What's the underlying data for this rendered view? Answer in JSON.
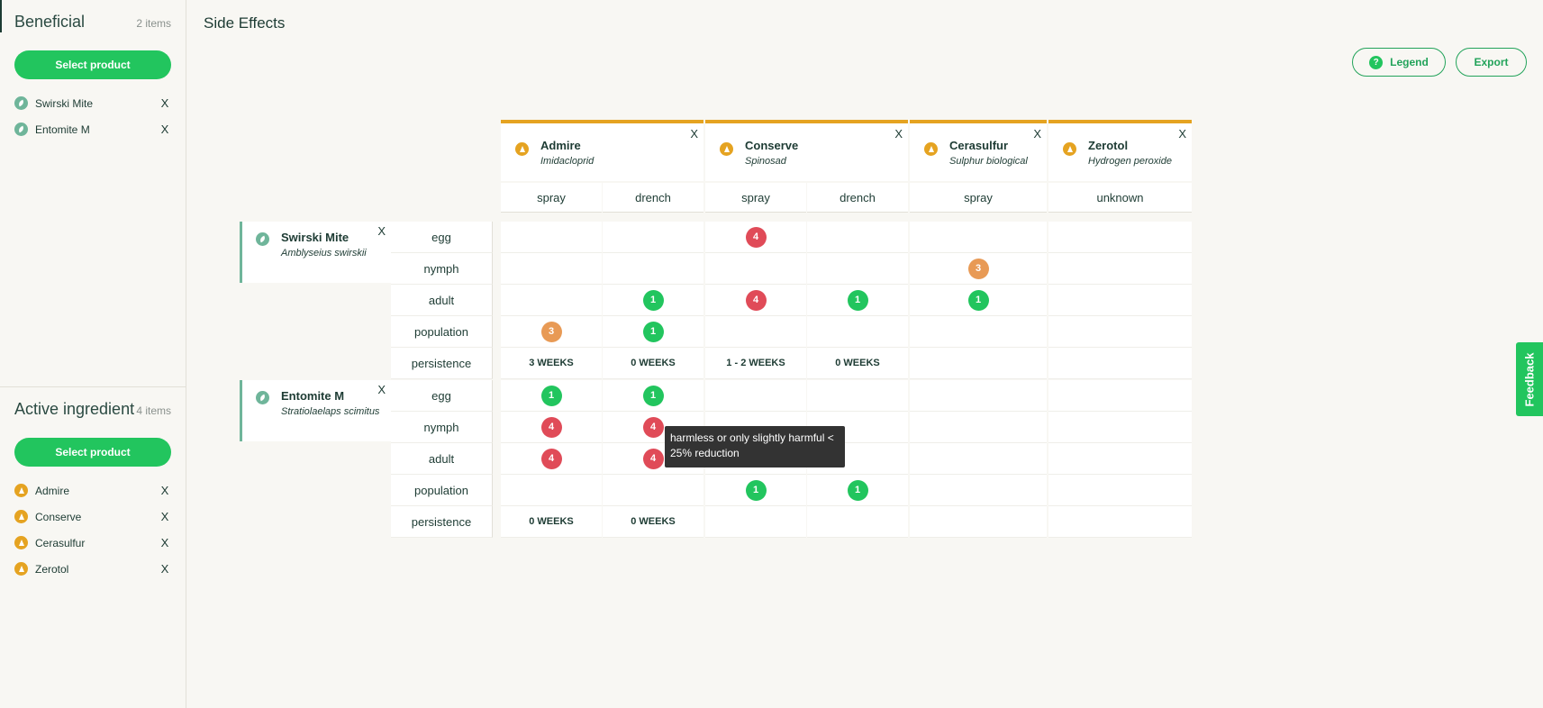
{
  "sidebar": {
    "beneficial": {
      "title": "Beneficial",
      "count": "2 items",
      "select_label": "Select product",
      "items": [
        {
          "label": "Swirski Mite",
          "remove": "X"
        },
        {
          "label": "Entomite M",
          "remove": "X"
        }
      ]
    },
    "active": {
      "title": "Active ingredient",
      "count": "4 items",
      "select_label": "Select product",
      "items": [
        {
          "label": "Admire",
          "remove": "X"
        },
        {
          "label": "Conserve",
          "remove": "X"
        },
        {
          "label": "Cerasulfur",
          "remove": "X"
        },
        {
          "label": "Zerotol",
          "remove": "X"
        }
      ]
    }
  },
  "header": {
    "title": "Side Effects",
    "legend_label": "Legend",
    "legend_icon": "?",
    "export_label": "Export"
  },
  "products": [
    {
      "name": "Admire",
      "sub": "Imidacloprid",
      "remove": "X",
      "apps": [
        "spray",
        "drench"
      ]
    },
    {
      "name": "Conserve",
      "sub": "Spinosad",
      "remove": "X",
      "apps": [
        "spray",
        "drench"
      ]
    },
    {
      "name": "Cerasulfur",
      "sub": "Sulphur biological",
      "remove": "X",
      "apps": [
        "spray"
      ]
    },
    {
      "name": "Zerotol",
      "sub": "Hydrogen peroxide",
      "remove": "X",
      "apps": [
        "unknown"
      ]
    }
  ],
  "beneficials": [
    {
      "name": "Swirski Mite",
      "sub": "Amblyseius swirskii",
      "remove": "X",
      "rows": [
        {
          "stage": "egg",
          "values": [
            "",
            "",
            "4",
            "",
            "",
            ""
          ]
        },
        {
          "stage": "nymph",
          "values": [
            "",
            "",
            "",
            "",
            "3",
            ""
          ]
        },
        {
          "stage": "adult",
          "values": [
            "",
            "1",
            "4",
            "1",
            "1",
            ""
          ]
        },
        {
          "stage": "population",
          "values": [
            "3",
            "1",
            "",
            "",
            "",
            ""
          ]
        },
        {
          "stage": "persistence",
          "values": [
            "3 WEEKS",
            "0 WEEKS",
            "1 - 2 WEEKS",
            "0 WEEKS",
            "",
            ""
          ]
        }
      ]
    },
    {
      "name": "Entomite M",
      "sub": "Stratiolaelaps scimitus",
      "remove": "X",
      "rows": [
        {
          "stage": "egg",
          "values": [
            "1",
            "1",
            "",
            "",
            "",
            ""
          ]
        },
        {
          "stage": "nymph",
          "values": [
            "4",
            "4",
            "",
            "",
            "",
            ""
          ]
        },
        {
          "stage": "adult",
          "values": [
            "4",
            "4",
            "",
            "",
            "",
            ""
          ]
        },
        {
          "stage": "population",
          "values": [
            "",
            "",
            "1",
            "1",
            "",
            ""
          ]
        },
        {
          "stage": "persistence",
          "values": [
            "0 WEEKS",
            "0 WEEKS",
            "",
            "",
            "",
            ""
          ]
        }
      ]
    }
  ],
  "tooltip": "harmless or only slightly harmful < 25% reduction",
  "feedback_label": "Feedback",
  "colors": {
    "accent": "#22c55e",
    "orange": "#e89a55",
    "red": "#e04b58",
    "product_bar": "#e5a321",
    "beneficial_bar": "#6fb59a"
  }
}
